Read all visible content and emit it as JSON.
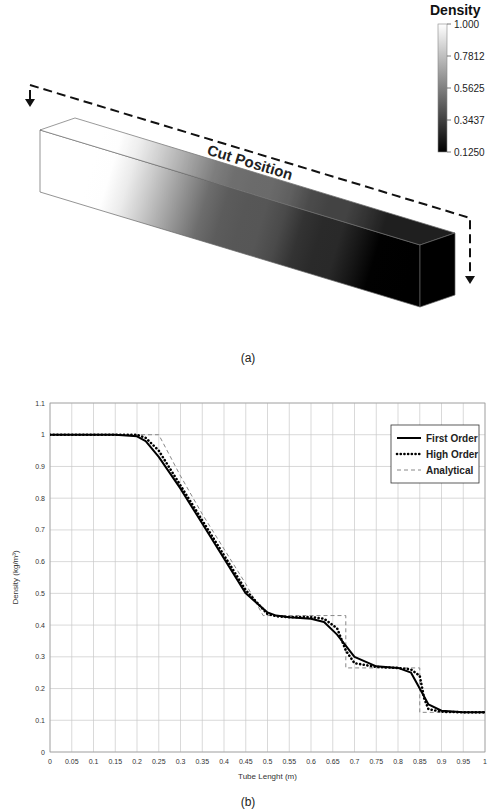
{
  "chart_data": [
    {
      "type": "field",
      "title": "Density",
      "caption": "(a)",
      "annotation": "Cut Position",
      "x": [
        0,
        0.15,
        0.2,
        0.25,
        0.3,
        0.35,
        0.4,
        0.45,
        0.5,
        0.55,
        0.6,
        0.65,
        0.7,
        0.75,
        0.8,
        0.85,
        0.9,
        1
      ],
      "values": [
        1,
        1,
        0.995,
        0.93,
        0.83,
        0.72,
        0.61,
        0.5,
        0.44,
        0.425,
        0.42,
        0.38,
        0.3,
        0.27,
        0.265,
        0.2,
        0.13,
        0.125
      ],
      "colorbar_range": [
        0.125,
        1
      ],
      "colorbar_ticks": [
        {
          "value": 1,
          "label": "1.000"
        },
        {
          "value": 0.7812,
          "label": "0.7812"
        },
        {
          "value": 0.5625,
          "label": "0.5625"
        },
        {
          "value": 0.3437,
          "label": "0.3437"
        },
        {
          "value": 0.125,
          "label": "0.1250"
        }
      ]
    },
    {
      "type": "line",
      "caption": "(b)",
      "xlabel": "Tube Lenght (m)",
      "ylabel": "Density (kg/m³)",
      "xlim": [
        0,
        1
      ],
      "ylim": [
        0,
        1.1
      ],
      "xticks": [
        0,
        0.05,
        0.1,
        0.15,
        0.2,
        0.25,
        0.3,
        0.35,
        0.4,
        0.45,
        0.5,
        0.55,
        0.6,
        0.65,
        0.7,
        0.75,
        0.8,
        0.85,
        0.9,
        0.95,
        1
      ],
      "yticks": [
        0,
        0.1,
        0.2,
        0.3,
        0.4,
        0.5,
        0.6,
        0.7,
        0.8,
        0.9,
        1,
        1.1
      ],
      "grid": true,
      "legend": "upper right",
      "series": [
        {
          "name": "First Order",
          "color": "#000000",
          "line_style": "solid",
          "x": [
            0,
            0.15,
            0.2,
            0.22,
            0.25,
            0.3,
            0.35,
            0.4,
            0.45,
            0.5,
            0.52,
            0.55,
            0.6,
            0.63,
            0.66,
            0.7,
            0.75,
            0.8,
            0.83,
            0.85,
            0.87,
            0.9,
            0.95,
            1
          ],
          "values": [
            1,
            1,
            0.995,
            0.98,
            0.93,
            0.83,
            0.72,
            0.61,
            0.5,
            0.44,
            0.43,
            0.425,
            0.42,
            0.41,
            0.37,
            0.3,
            0.27,
            0.265,
            0.25,
            0.2,
            0.15,
            0.13,
            0.125,
            0.125
          ]
        },
        {
          "name": "High Order",
          "color": "#000000",
          "line_style": "dotted",
          "x": [
            0,
            0.15,
            0.2,
            0.22,
            0.25,
            0.3,
            0.35,
            0.4,
            0.45,
            0.5,
            0.52,
            0.55,
            0.6,
            0.63,
            0.66,
            0.68,
            0.7,
            0.75,
            0.8,
            0.83,
            0.85,
            0.86,
            0.87,
            0.9,
            0.95,
            1
          ],
          "values": [
            1,
            1,
            1,
            0.99,
            0.95,
            0.84,
            0.73,
            0.62,
            0.51,
            0.435,
            0.428,
            0.425,
            0.425,
            0.42,
            0.39,
            0.32,
            0.28,
            0.268,
            0.265,
            0.26,
            0.24,
            0.17,
            0.135,
            0.127,
            0.125,
            0.125
          ]
        },
        {
          "name": "Analytical",
          "color": "#888888",
          "line_style": "dashed",
          "x": [
            0,
            0.25,
            0.3,
            0.35,
            0.4,
            0.45,
            0.49,
            0.68,
            0.68,
            0.85,
            0.85,
            1
          ],
          "values": [
            1,
            1,
            0.87,
            0.75,
            0.64,
            0.53,
            0.43,
            0.43,
            0.265,
            0.265,
            0.125,
            0.125
          ]
        }
      ]
    }
  ]
}
